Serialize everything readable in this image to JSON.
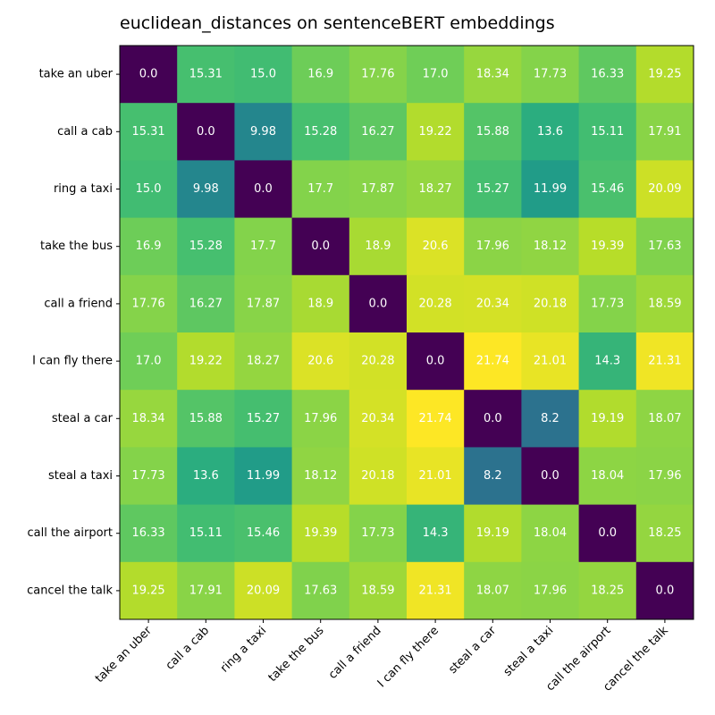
{
  "chart_data": {
    "type": "heatmap",
    "title": "euclidean_distances on sentenceBERT embeddings",
    "xlabel": "",
    "ylabel": "",
    "row_labels": [
      "take an uber",
      "call a cab",
      "ring a taxi",
      "take the bus",
      "call a friend",
      "I can fly there",
      "steal a car",
      "steal a taxi",
      "call the airport",
      "cancel the talk"
    ],
    "col_labels": [
      "take an uber",
      "call a cab",
      "ring a taxi",
      "take the bus",
      "call a friend",
      "I can fly there",
      "steal a car",
      "steal a taxi",
      "call the airport",
      "cancel the talk"
    ],
    "values": [
      [
        0.0,
        15.31,
        15.0,
        16.9,
        17.76,
        17.0,
        18.34,
        17.73,
        16.33,
        19.25
      ],
      [
        15.31,
        0.0,
        9.98,
        15.28,
        16.27,
        19.22,
        15.88,
        13.6,
        15.11,
        17.91
      ],
      [
        15.0,
        9.98,
        0.0,
        17.7,
        17.87,
        18.27,
        15.27,
        11.99,
        15.46,
        20.09
      ],
      [
        16.9,
        15.28,
        17.7,
        0.0,
        18.9,
        20.6,
        17.96,
        18.12,
        19.39,
        17.63
      ],
      [
        17.76,
        16.27,
        17.87,
        18.9,
        0.0,
        20.28,
        20.34,
        20.18,
        17.73,
        18.59
      ],
      [
        17.0,
        19.22,
        18.27,
        20.6,
        20.28,
        0.0,
        21.74,
        21.01,
        14.3,
        21.31
      ],
      [
        18.34,
        15.88,
        15.27,
        17.96,
        20.34,
        21.74,
        0.0,
        8.2,
        19.19,
        18.07
      ],
      [
        17.73,
        13.6,
        11.99,
        18.12,
        20.18,
        21.01,
        8.2,
        0.0,
        18.04,
        17.96
      ],
      [
        16.33,
        15.11,
        15.46,
        19.39,
        17.73,
        14.3,
        19.19,
        18.04,
        0.0,
        18.25
      ],
      [
        19.25,
        17.91,
        20.09,
        17.63,
        18.59,
        21.31,
        18.07,
        17.96,
        18.25,
        0.0
      ]
    ],
    "value_labels": [
      [
        "0.0",
        "15.31",
        "15.0",
        "16.9",
        "17.76",
        "17.0",
        "18.34",
        "17.73",
        "16.33",
        "19.25"
      ],
      [
        "15.31",
        "0.0",
        "9.98",
        "15.28",
        "16.27",
        "19.22",
        "15.88",
        "13.6",
        "15.11",
        "17.91"
      ],
      [
        "15.0",
        "9.98",
        "0.0",
        "17.7",
        "17.87",
        "18.27",
        "15.27",
        "11.99",
        "15.46",
        "20.09"
      ],
      [
        "16.9",
        "15.28",
        "17.7",
        "0.0",
        "18.9",
        "20.6",
        "17.96",
        "18.12",
        "19.39",
        "17.63"
      ],
      [
        "17.76",
        "16.27",
        "17.87",
        "18.9",
        "0.0",
        "20.28",
        "20.34",
        "20.18",
        "17.73",
        "18.59"
      ],
      [
        "17.0",
        "19.22",
        "18.27",
        "20.6",
        "20.28",
        "0.0",
        "21.74",
        "21.01",
        "14.3",
        "21.31"
      ],
      [
        "18.34",
        "15.88",
        "15.27",
        "17.96",
        "20.34",
        "21.74",
        "0.0",
        "8.2",
        "19.19",
        "18.07"
      ],
      [
        "17.73",
        "13.6",
        "11.99",
        "18.12",
        "20.18",
        "21.01",
        "8.2",
        "0.0",
        "18.04",
        "17.96"
      ],
      [
        "16.33",
        "15.11",
        "15.46",
        "19.39",
        "17.73",
        "14.3",
        "19.19",
        "18.04",
        "0.0",
        "18.25"
      ],
      [
        "19.25",
        "17.91",
        "20.09",
        "17.63",
        "18.59",
        "21.31",
        "18.07",
        "17.96",
        "18.25",
        "0.0"
      ]
    ],
    "colormap": "viridis",
    "vmin": 0.0,
    "vmax": 21.74,
    "text_color": "#ffffff",
    "grid": false
  }
}
